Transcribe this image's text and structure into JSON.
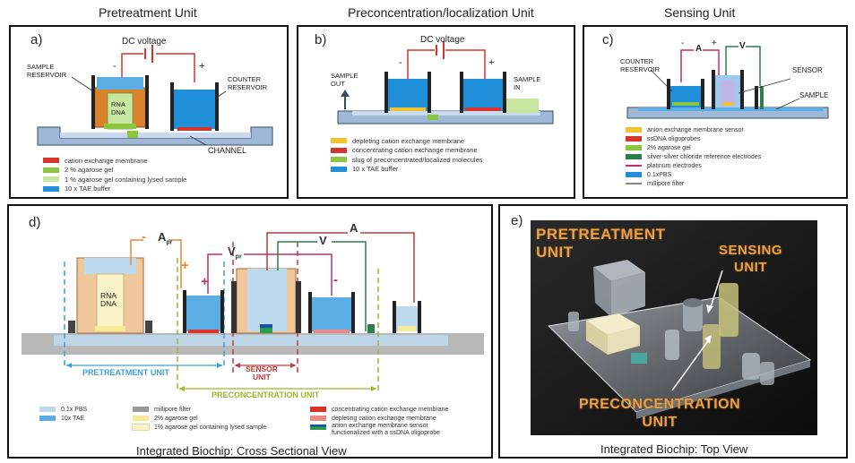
{
  "headers": {
    "pretreatment": "Pretreatment Unit",
    "preconcentration": "Preconcentration/localization Unit",
    "sensing": "Sensing Unit"
  },
  "panel_a": {
    "label": "a)",
    "dc_voltage": "DC voltage",
    "minus": "-",
    "plus": "+",
    "sample_reservoir": "SAMPLE\nRESERVOIR",
    "counter_reservoir": "COUNTER\nRESERVOIR",
    "rna_dna": "RNA\nDNA",
    "channel": "CHANNEL",
    "legend": [
      {
        "color": "#d8332c",
        "text": "cation exchange membrane"
      },
      {
        "color": "#8cc63f",
        "text": "2 % agarose gel"
      },
      {
        "color": "#c8e6a0",
        "text": "1 % agarose gel containing lysed sample"
      },
      {
        "color": "#1e8fd8",
        "text": "10 x TAE buffer"
      }
    ]
  },
  "panel_b": {
    "label": "b)",
    "dc_voltage": "DC voltage",
    "minus": "-",
    "plus": "+",
    "sample_out": "SAMPLE\nOUT",
    "sample_in": "SAMPLE\nIN",
    "legend": [
      {
        "color": "#f2c12e",
        "text": "depleting cation exchange membrane"
      },
      {
        "color": "#d8332c",
        "text": "concentrating cation exchange membrane"
      },
      {
        "color": "#8cc63f",
        "text": "slug of preconcentrated/localized molecules"
      },
      {
        "color": "#1e8fd8",
        "text": "10 x TAE buffer"
      }
    ]
  },
  "panel_c": {
    "label": "c)",
    "a_symbol": "A",
    "v_symbol": "V",
    "minus": "-",
    "plus": "+",
    "counter_reservoir": "COUNTER\nRESERVOIR",
    "sensor": "SENSOR",
    "sample": "SAMPLE",
    "legend": [
      {
        "color": "#f2c12e",
        "text": "anion exchange membrane sensor",
        "line": false
      },
      {
        "color": "#d8332c",
        "text": "ssDNA oligoprobes",
        "line": false
      },
      {
        "color": "#8cc63f",
        "text": "2% agarose gel",
        "line": false
      },
      {
        "color": "#2e7d4f",
        "text": "silver-silver chloride reference electrodes",
        "line": false
      },
      {
        "color": "#c0306a",
        "text": "platinum electrodes",
        "line": true
      },
      {
        "color": "#1e8fd8",
        "text": "0.1xPBS",
        "line": false
      },
      {
        "color": "#888888",
        "text": "millipore filter",
        "line": true
      }
    ]
  },
  "panel_d": {
    "label": "d)",
    "a_pr": "A",
    "a_pr_sub": "pr",
    "v_pr": "V",
    "v_pr_sub": "pr",
    "v": "V",
    "a": "A",
    "plus": "+",
    "minus": "-",
    "rna_dna": "RNA\nDNA",
    "pretreatment_unit": "PRETREATMENT UNIT",
    "sensor_unit": "SENSOR\nUNIT",
    "preconcentration_unit": "PRECONCENTRATION UNIT",
    "caption": "Integrated Biochip: Cross Sectional View",
    "legend_col1": [
      {
        "color": "#bcd9ee",
        "text": "0.1x PBS"
      },
      {
        "color": "#5aaee3",
        "text": "10x TAE"
      }
    ],
    "legend_col2": [
      {
        "color": "#9a9a9a",
        "text": "millipore filter"
      },
      {
        "color": "#f6e99a",
        "text": "2% agarose gel"
      },
      {
        "color": "#fbf3c8",
        "text": "1% agarose gel containing lysed sample"
      }
    ],
    "legend_col3": [
      {
        "color": "#d8332c",
        "text": "concentrating cation exchange membrane"
      },
      {
        "color": "#e88a8a",
        "text": "depleting cation exchange membrane"
      },
      {
        "color": "#2a9d4a",
        "text": "anion exchange membrane sensor\nfunctionalized with a ssDNA oligoprobe"
      }
    ]
  },
  "panel_e": {
    "label": "e)",
    "pretreatment": "PRETREATMENT\nUNIT",
    "sensing": "SENSING\nUNIT",
    "preconcentration": "PRECONCENTRATION\nUNIT",
    "caption": "Integrated Biochip: Top View"
  }
}
